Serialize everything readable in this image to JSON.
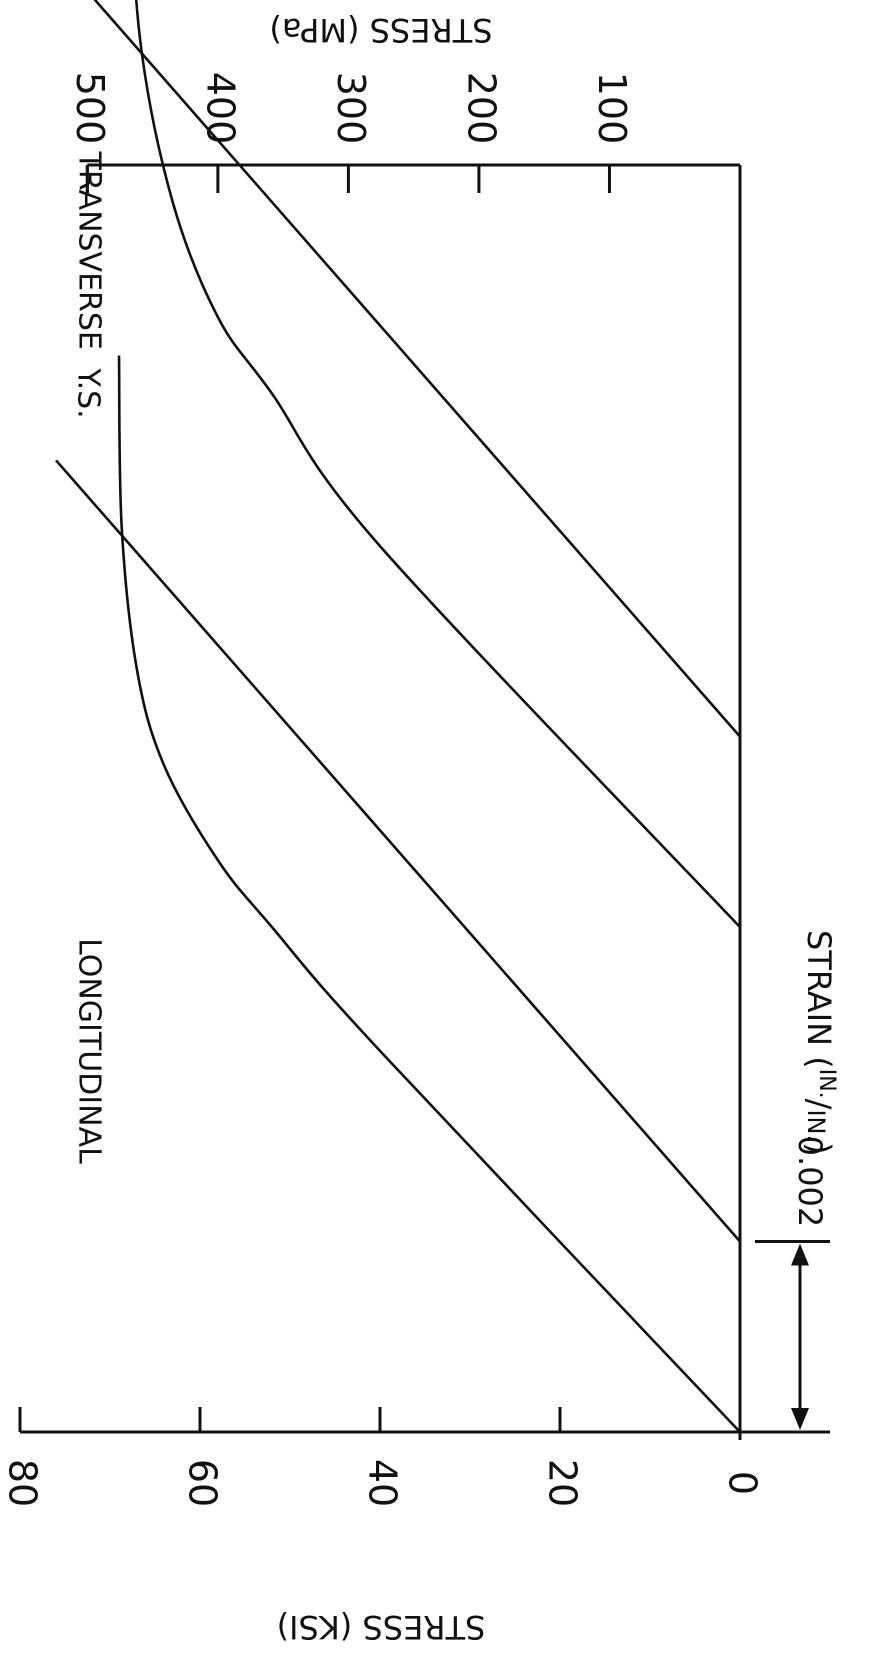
{
  "chart_data": {
    "type": "line",
    "orientation": "rotated-90-clockwise",
    "x_axis": {
      "label_prefix": "STRAIN (",
      "unit_numerator": "IN.",
      "unit_slash": "/",
      "unit_denominator": "IN.",
      "label_suffix": ")",
      "dimension": {
        "label": "0.002",
        "from": 0,
        "to": 0.002
      },
      "range": [
        0,
        0.0133
      ]
    },
    "y_axis_left": {
      "label": "STRESS (KSI)",
      "ticks": [
        0,
        20,
        40,
        60,
        80
      ],
      "range": [
        0,
        80
      ]
    },
    "y_axis_right": {
      "label": "STRESS (MPa)",
      "ticks": [
        100,
        200,
        300,
        400,
        500
      ]
    },
    "groups": [
      {
        "name": "LONGITUDINAL",
        "ys_label": "Y.S.",
        "yield_strength_ksi": 69,
        "stress_strain_curve": [
          [
            0,
            0
          ],
          [
            0.004,
            40
          ],
          [
            0.0053,
            52
          ],
          [
            0.006,
            58
          ],
          [
            0.007,
            64
          ],
          [
            0.008,
            67
          ],
          [
            0.0095,
            68.7
          ],
          [
            0.0113,
            69
          ]
        ],
        "offset_line": [
          [
            0.002,
            0
          ],
          [
            0.0102,
            76
          ]
        ]
      },
      {
        "name": "TRANSVERSE",
        "ys_label": "Y.S.",
        "yield_strength_ksi": 68,
        "stress_strain_curve": [
          [
            0.0053,
            0
          ],
          [
            0.0093,
            40
          ],
          [
            0.0109,
            52
          ],
          [
            0.0117,
            58
          ],
          [
            0.0129,
            63
          ],
          [
            0.0145,
            66.5
          ],
          [
            0.0163,
            67.8
          ],
          [
            0.0178,
            68
          ]
        ],
        "offset_line": [
          [
            0.0073,
            0
          ],
          [
            0.0155,
            76
          ]
        ]
      }
    ]
  }
}
